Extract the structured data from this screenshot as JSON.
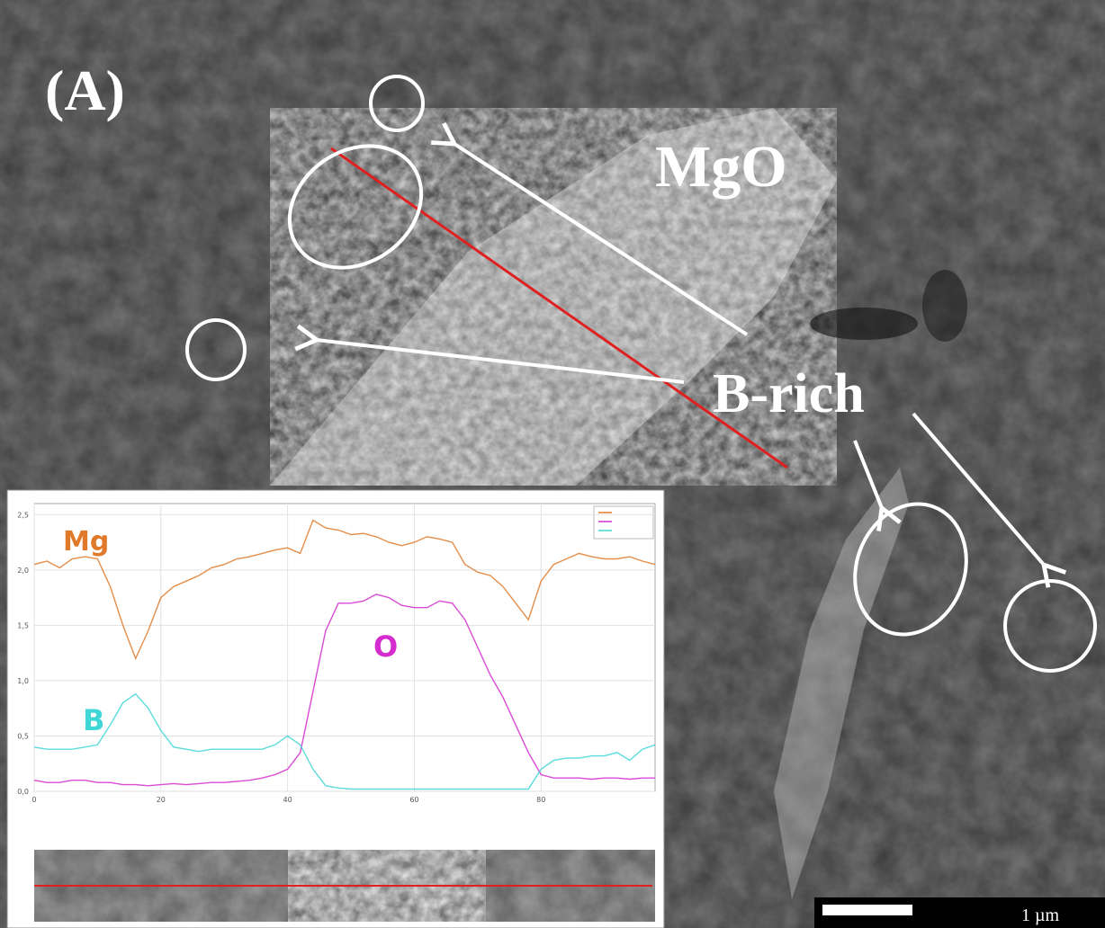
{
  "labels": {
    "panel": "(A)",
    "mgo": "MgO",
    "b_rich": "B-rich",
    "scale": "1 µm"
  },
  "chart_data": {
    "type": "line",
    "x": [
      0,
      2,
      4,
      6,
      8,
      10,
      12,
      14,
      16,
      18,
      20,
      22,
      24,
      26,
      28,
      30,
      32,
      34,
      36,
      38,
      40,
      42,
      44,
      46,
      48,
      50,
      52,
      54,
      56,
      58,
      60,
      62,
      64,
      66,
      68,
      70,
      72,
      74,
      76,
      78,
      80,
      82,
      84,
      86,
      88,
      90,
      92,
      94,
      96,
      98
    ],
    "series": [
      {
        "name": "Mg",
        "color": "#e07a2a",
        "values": [
          2.05,
          2.08,
          2.02,
          2.1,
          2.12,
          2.1,
          1.85,
          1.5,
          1.2,
          1.45,
          1.75,
          1.85,
          1.9,
          1.95,
          2.02,
          2.05,
          2.1,
          2.12,
          2.15,
          2.18,
          2.2,
          2.15,
          2.45,
          2.38,
          2.36,
          2.32,
          2.33,
          2.3,
          2.25,
          2.22,
          2.25,
          2.3,
          2.28,
          2.25,
          2.05,
          1.98,
          1.95,
          1.85,
          1.7,
          1.55,
          1.9,
          2.05,
          2.1,
          2.15,
          2.12,
          2.1,
          2.1,
          2.12,
          2.08,
          2.05
        ]
      },
      {
        "name": "O",
        "color": "#d42ccf",
        "values": [
          0.1,
          0.08,
          0.08,
          0.1,
          0.1,
          0.08,
          0.08,
          0.06,
          0.06,
          0.05,
          0.06,
          0.07,
          0.06,
          0.07,
          0.08,
          0.08,
          0.09,
          0.1,
          0.12,
          0.15,
          0.2,
          0.35,
          0.9,
          1.45,
          1.7,
          1.7,
          1.72,
          1.78,
          1.75,
          1.68,
          1.66,
          1.66,
          1.72,
          1.7,
          1.55,
          1.3,
          1.05,
          0.85,
          0.6,
          0.35,
          0.15,
          0.12,
          0.12,
          0.12,
          0.11,
          0.12,
          0.12,
          0.11,
          0.12,
          0.12
        ]
      },
      {
        "name": "B",
        "color": "#3fd6d6",
        "values": [
          0.4,
          0.38,
          0.38,
          0.38,
          0.4,
          0.42,
          0.6,
          0.8,
          0.88,
          0.75,
          0.55,
          0.4,
          0.38,
          0.36,
          0.38,
          0.38,
          0.38,
          0.38,
          0.38,
          0.42,
          0.5,
          0.42,
          0.2,
          0.05,
          0.03,
          0.02,
          0.02,
          0.02,
          0.02,
          0.02,
          0.02,
          0.02,
          0.02,
          0.02,
          0.02,
          0.02,
          0.02,
          0.02,
          0.02,
          0.02,
          0.2,
          0.28,
          0.3,
          0.3,
          0.32,
          0.32,
          0.35,
          0.28,
          0.38,
          0.42
        ]
      }
    ],
    "xlim": [
      0,
      98
    ],
    "xticks": [
      0,
      20,
      40,
      60,
      80
    ],
    "ylim": [
      0,
      2.6
    ],
    "yticks": [
      {
        "value": 0,
        "label": "0,0"
      },
      {
        "value": 0.5,
        "label": "0,5"
      },
      {
        "value": 1,
        "label": "1,0"
      },
      {
        "value": 1.5,
        "label": "1,5"
      },
      {
        "value": 2,
        "label": "2,0"
      },
      {
        "value": 2.5,
        "label": "2,5"
      }
    ],
    "grid": true
  }
}
